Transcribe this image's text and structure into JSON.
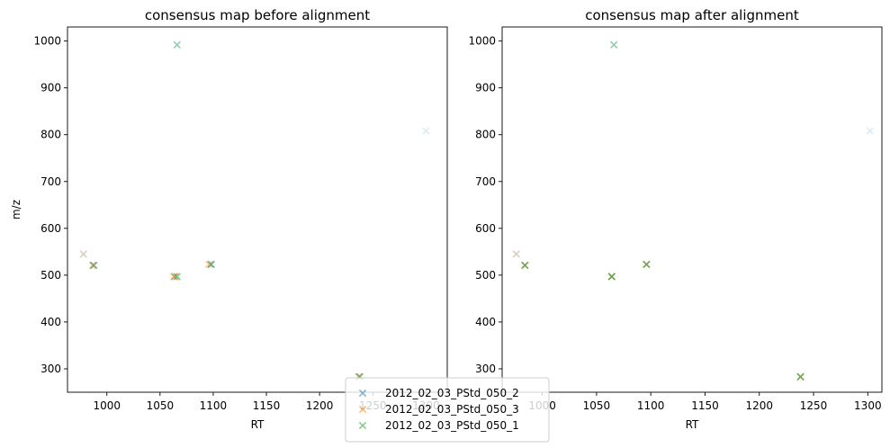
{
  "figure": {
    "legend_position": "lower-center",
    "legend_entries": [
      {
        "label": "2012_02_03_PStd_050_2",
        "color": "#1f77b4",
        "marker": "x-marker-icon"
      },
      {
        "label": "2012_02_03_PStd_050_3",
        "color": "#ff7f0e",
        "marker": "x-marker-icon"
      },
      {
        "label": "2012_02_03_PStd_050_1",
        "color": "#2ca02c",
        "marker": "x-marker-icon"
      }
    ]
  },
  "chart_data": [
    {
      "type": "scatter",
      "title": "consensus map before alignment",
      "xlabel": "RT",
      "ylabel": "m/z",
      "xlim": [
        963,
        1320
      ],
      "ylim": [
        250,
        1030
      ],
      "xticks": [
        1000,
        1050,
        1100,
        1150,
        1200,
        1250,
        1300
      ],
      "yticks": [
        300,
        400,
        500,
        600,
        700,
        800,
        900,
        1000
      ],
      "xtick_labels": [
        "1000",
        "1050",
        "1100",
        "1150",
        "1200",
        "1250",
        "1300"
      ],
      "ytick_labels": [
        "300",
        "400",
        "500",
        "600",
        "700",
        "800",
        "900",
        "1000"
      ],
      "grid": false,
      "series": [
        {
          "name": "2012_02_03_PStd_050_2",
          "color": "#1f77b4",
          "points": [
            [
              1300,
              808
            ],
            [
              978,
              545
            ],
            [
              987,
              521
            ],
            [
              1064,
              497
            ],
            [
              1098,
              523
            ],
            [
              1237,
              283
            ],
            [
              1066,
              992
            ]
          ],
          "opacity": [
            0.15,
            0.2,
            0.45,
            0.45,
            0.45,
            0.45,
            0.2
          ]
        },
        {
          "name": "2012_02_03_PStd_050_3",
          "color": "#ff7f0e",
          "points": [
            [
              978,
              545
            ],
            [
              987,
              521
            ],
            [
              1063,
              497
            ],
            [
              1096,
              523
            ],
            [
              1237,
              283
            ]
          ],
          "opacity": [
            0.2,
            0.45,
            0.6,
            0.45,
            0.45
          ]
        },
        {
          "name": "2012_02_03_PStd_050_1",
          "color": "#2ca02c",
          "points": [
            [
              988,
              521
            ],
            [
              1066,
              497
            ],
            [
              1098,
              523
            ],
            [
              1238,
              283
            ],
            [
              1066,
              992
            ]
          ],
          "opacity": [
            0.5,
            0.6,
            0.5,
            0.5,
            0.35
          ]
        }
      ]
    },
    {
      "type": "scatter",
      "title": "consensus map after alignment",
      "xlabel": "RT",
      "ylabel": "",
      "xlim": [
        963,
        1313
      ],
      "ylim": [
        250,
        1030
      ],
      "xticks": [
        1000,
        1050,
        1100,
        1150,
        1200,
        1250,
        1300
      ],
      "yticks": [
        300,
        400,
        500,
        600,
        700,
        800,
        900,
        1000
      ],
      "xtick_labels": [
        "1000",
        "1050",
        "1100",
        "1150",
        "1200",
        "1250",
        "1300"
      ],
      "ytick_labels": [
        "300",
        "400",
        "500",
        "600",
        "700",
        "800",
        "900",
        "1000"
      ],
      "grid": false,
      "series": [
        {
          "name": "2012_02_03_PStd_050_2",
          "color": "#1f77b4",
          "points": [
            [
              1302,
              808
            ],
            [
              976,
              545
            ],
            [
              984,
              521
            ],
            [
              1064,
              497
            ],
            [
              1096,
              523
            ],
            [
              1238,
              283
            ],
            [
              1066,
              992
            ]
          ],
          "opacity": [
            0.15,
            0.2,
            0.45,
            0.45,
            0.45,
            0.45,
            0.2
          ]
        },
        {
          "name": "2012_02_03_PStd_050_3",
          "color": "#ff7f0e",
          "points": [
            [
              976,
              545
            ],
            [
              984,
              521
            ],
            [
              1064,
              497
            ],
            [
              1096,
              523
            ],
            [
              1238,
              283
            ]
          ],
          "opacity": [
            0.2,
            0.45,
            0.5,
            0.45,
            0.45
          ]
        },
        {
          "name": "2012_02_03_PStd_050_1",
          "color": "#2ca02c",
          "points": [
            [
              984,
              521
            ],
            [
              1064,
              497
            ],
            [
              1096,
              523
            ],
            [
              1238,
              283
            ],
            [
              1066,
              992
            ]
          ],
          "opacity": [
            0.5,
            0.6,
            0.5,
            0.5,
            0.35
          ]
        }
      ]
    }
  ]
}
